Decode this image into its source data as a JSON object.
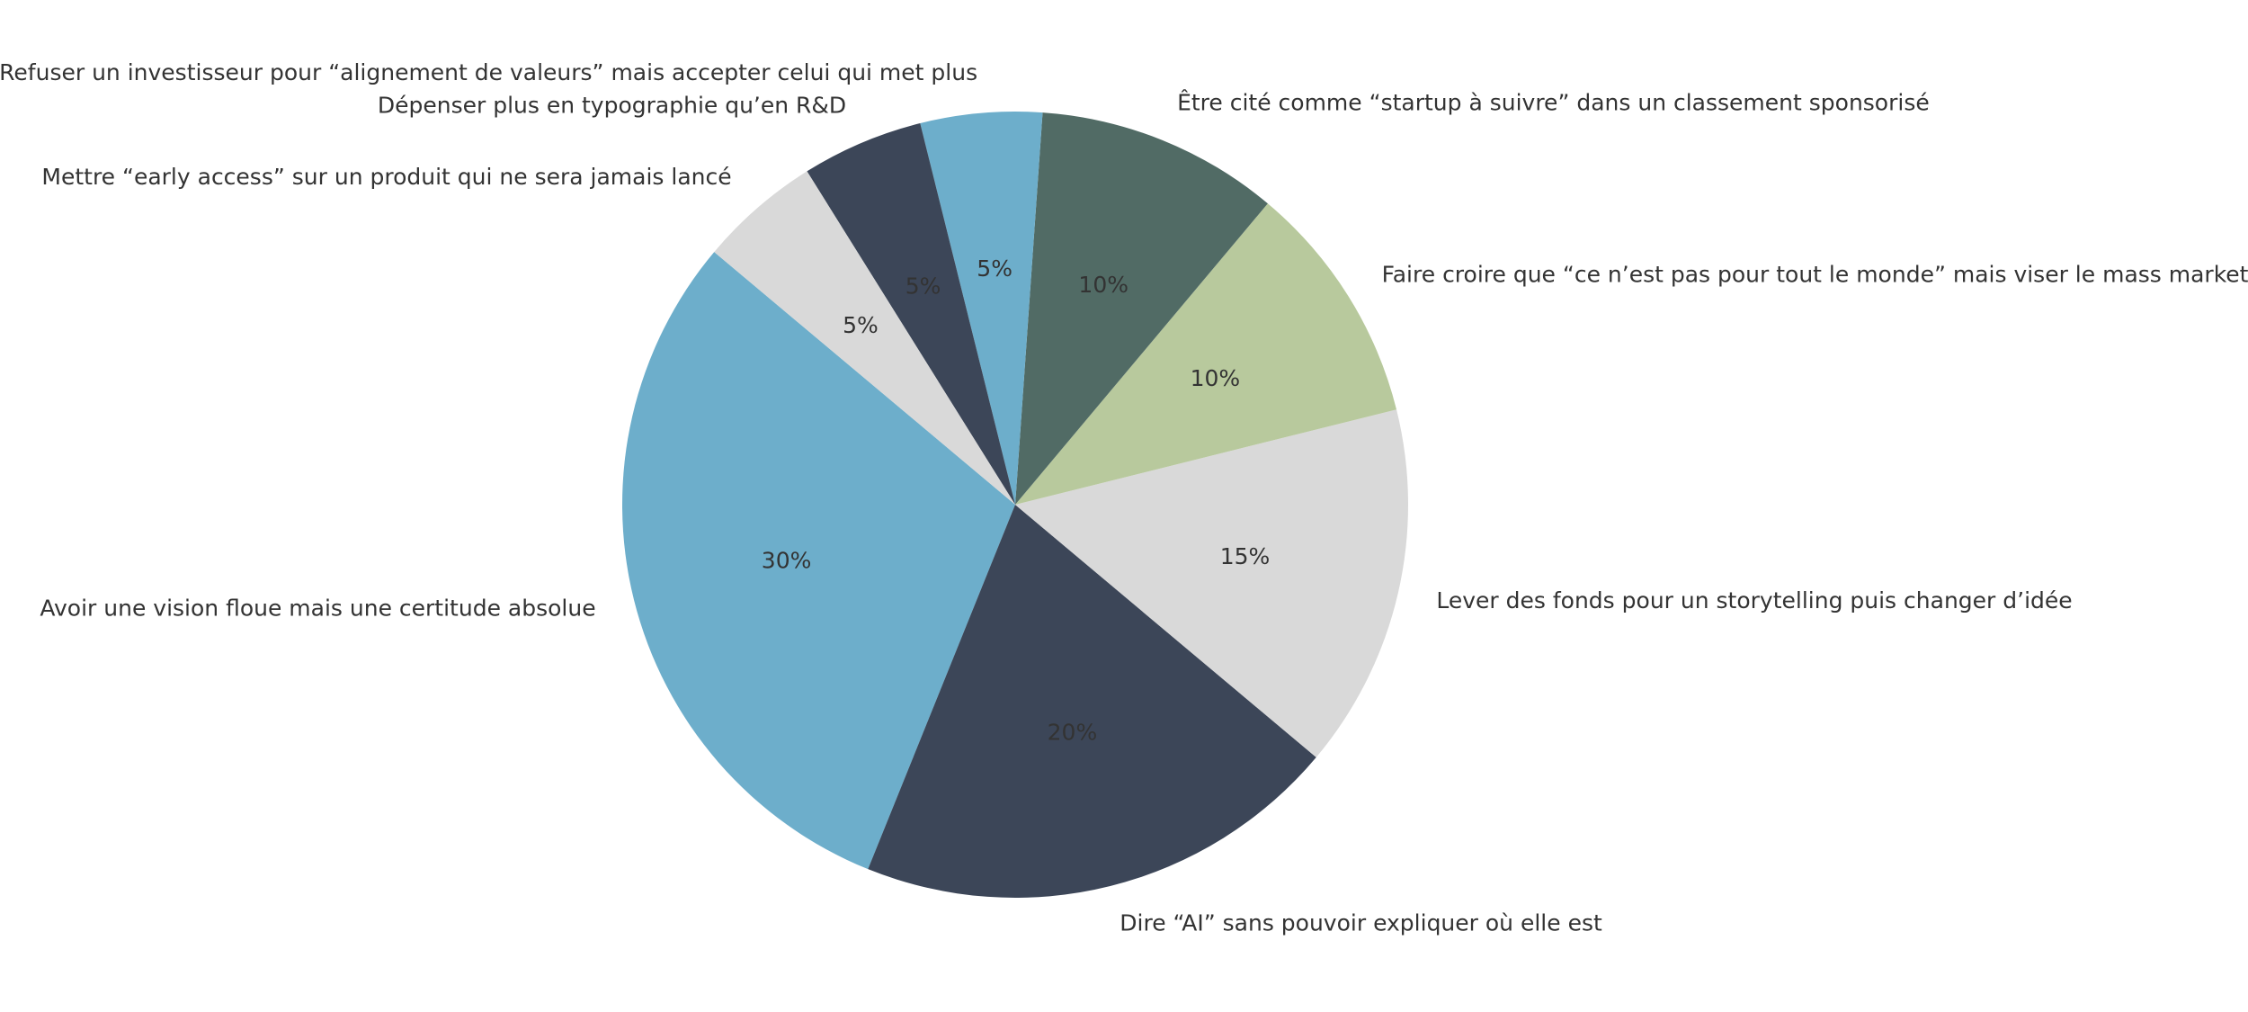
{
  "chart_data": {
    "type": "pie",
    "start_angle": 140,
    "categories": [
      "Avoir une vision floue mais une certitude absolue",
      "Dire “AI” sans pouvoir expliquer où elle est",
      "Lever des fonds pour un storytelling puis changer d’idée",
      "Faire croire que “ce n’est pas pour tout le monde” mais viser le mass market",
      "Être cité comme “startup à suivre” dans un classement sponsorisé",
      "Refuser un investisseur pour “alignement de valeurs” mais accepter celui qui met plus",
      "Dépenser plus en typographie qu’en R&D",
      "Mettre “early access” sur un produit qui ne sera jamais lancé"
    ],
    "values": [
      30,
      20,
      15,
      10,
      10,
      5,
      5,
      5
    ],
    "value_labels": [
      "30%",
      "20%",
      "15%",
      "10%",
      "10%",
      "5%",
      "5%",
      "5%"
    ],
    "colors": [
      "#6daecb",
      "#3c4658",
      "#d9d9d9",
      "#b8c99d",
      "#516b65",
      "#6daecb",
      "#3c4658",
      "#d9d9d9"
    ]
  }
}
